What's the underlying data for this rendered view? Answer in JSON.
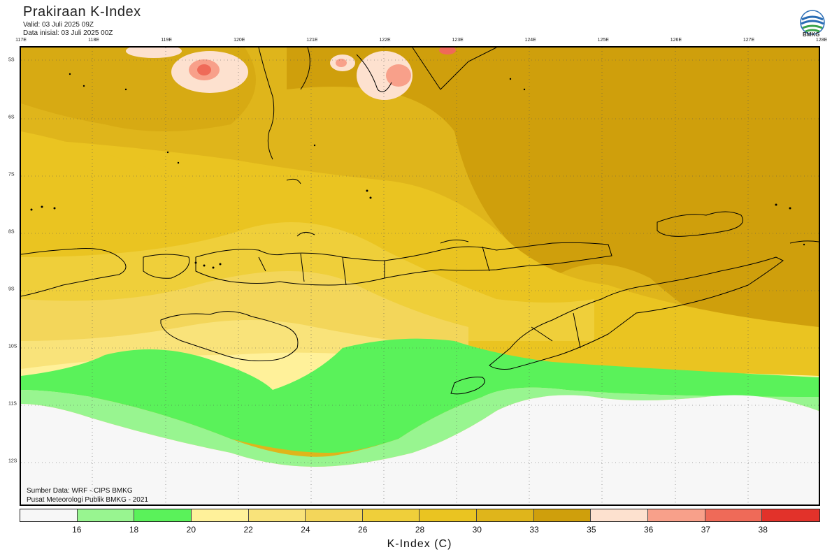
{
  "header": {
    "title": "Prakiraan K-Index",
    "valid": "Valid: 03 Juli 2025 09Z",
    "initial": "Data inisial: 03 Juli 2025 00Z"
  },
  "logo": {
    "text": "BMKG"
  },
  "map": {
    "lon_labels": [
      "117E",
      "118E",
      "119E",
      "120E",
      "121E",
      "122E",
      "123E",
      "124E",
      "125E",
      "126E",
      "127E",
      "128E"
    ],
    "lat_labels": [
      "5S",
      "6S",
      "7S",
      "8S",
      "9S",
      "10S",
      "11S",
      "12S"
    ]
  },
  "footer": {
    "source": "Sumber Data: WRF - CIPS BMKG",
    "publisher": "Pusat Meteorologi Publik BMKG - 2021"
  },
  "colorbar": {
    "title": "K-Index (C)",
    "ticks": [
      "16",
      "18",
      "20",
      "22",
      "24",
      "26",
      "28",
      "30",
      "33",
      "35",
      "36",
      "37",
      "38"
    ],
    "colors": [
      "#f7f7f7",
      "#98f590",
      "#5af25a",
      "#fff19a",
      "#f9e37a",
      "#f3d65a",
      "#efcf3a",
      "#eac421",
      "#dfb51b",
      "#cf9f0c",
      "#fde1cf",
      "#f8a08a",
      "#ef6a58",
      "#e2322a"
    ]
  }
}
